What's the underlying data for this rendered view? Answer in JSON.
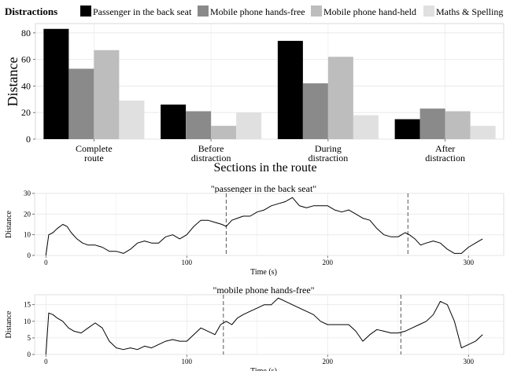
{
  "chart_data": [
    {
      "type": "bar",
      "legend_title": "Distractions",
      "legend_placement": "top",
      "categories": [
        "Complete\nroute",
        "Before\ndistraction",
        "During\ndistraction",
        "After\ndistraction"
      ],
      "series": [
        {
          "name": "Passenger in the back seat",
          "color": "#000000",
          "values": [
            83,
            26,
            74,
            15
          ]
        },
        {
          "name": "Mobile phone hands-free",
          "color": "#8a8a8a",
          "values": [
            53,
            21,
            42,
            23
          ]
        },
        {
          "name": "Mobile phone hand-held",
          "color": "#bdbdbd",
          "values": [
            67,
            10,
            62,
            21
          ]
        },
        {
          "name": "Maths & Spelling",
          "color": "#e0e0e0",
          "values": [
            29,
            20,
            18,
            10
          ]
        }
      ],
      "xlabel": "Sections in the route",
      "ylabel": "Distance",
      "yticks": [
        0,
        20,
        40,
        60,
        80
      ],
      "ylim": [
        0,
        87
      ],
      "grid": true
    },
    {
      "type": "line",
      "title": "\"passenger in the back seat\"",
      "xlabel": "Time (s)",
      "ylabel": "Distance",
      "xlim": [
        -8,
        325
      ],
      "ylim": [
        0,
        30
      ],
      "xticks": [
        0,
        100,
        200,
        300
      ],
      "yticks": [
        0,
        10,
        20,
        30
      ],
      "vlines": [
        128,
        257
      ],
      "grid": true,
      "x": [
        0,
        2,
        5,
        8,
        12,
        15,
        18,
        22,
        26,
        30,
        35,
        40,
        45,
        50,
        55,
        60,
        65,
        70,
        75,
        80,
        85,
        90,
        95,
        100,
        105,
        110,
        115,
        120,
        125,
        128,
        132,
        136,
        140,
        145,
        150,
        155,
        160,
        165,
        170,
        175,
        180,
        185,
        190,
        195,
        200,
        205,
        210,
        215,
        220,
        225,
        230,
        235,
        240,
        245,
        250,
        255,
        258,
        262,
        266,
        270,
        275,
        280,
        285,
        290,
        295,
        300,
        305,
        310
      ],
      "y": [
        0,
        10,
        11,
        13,
        15,
        14,
        11,
        8,
        6,
        5,
        5,
        4,
        2,
        2,
        1,
        3,
        6,
        7,
        6,
        6,
        9,
        10,
        8,
        10,
        14,
        17,
        17,
        16,
        15,
        14,
        17,
        18,
        19,
        19,
        21,
        22,
        24,
        25,
        26,
        28,
        24,
        23,
        24,
        24,
        24,
        22,
        21,
        22,
        20,
        18,
        17,
        13,
        10,
        9,
        9,
        11,
        10,
        8,
        5,
        6,
        7,
        6,
        3,
        1,
        1,
        4,
        6,
        8
      ]
    },
    {
      "type": "line",
      "title": "\"mobile phone hands-free\"",
      "xlabel": "Time (s)",
      "ylabel": "Distance",
      "xlim": [
        -8,
        325
      ],
      "ylim": [
        0,
        18
      ],
      "xticks": [
        0,
        100,
        200,
        300
      ],
      "yticks": [
        0,
        5,
        10,
        15
      ],
      "vlines": [
        126,
        252
      ],
      "grid": true,
      "x": [
        0,
        2,
        5,
        8,
        12,
        16,
        20,
        25,
        30,
        35,
        40,
        45,
        50,
        55,
        60,
        65,
        70,
        75,
        80,
        85,
        90,
        95,
        100,
        105,
        110,
        115,
        120,
        124,
        128,
        132,
        136,
        140,
        145,
        150,
        155,
        160,
        165,
        170,
        175,
        180,
        185,
        190,
        195,
        200,
        205,
        210,
        215,
        220,
        225,
        230,
        235,
        240,
        245,
        250,
        255,
        260,
        265,
        270,
        275,
        280,
        285,
        290,
        295,
        300,
        305,
        310
      ],
      "y": [
        0,
        12.5,
        12,
        11,
        10,
        8,
        7,
        6.5,
        8,
        9.5,
        8,
        4,
        2,
        1.5,
        2,
        1.5,
        2.5,
        2,
        3,
        4,
        4.5,
        4,
        4,
        6,
        8,
        7,
        6,
        9,
        10,
        9,
        11,
        12,
        13,
        14,
        15,
        15,
        17,
        16,
        15,
        14,
        13,
        12,
        10,
        9,
        9,
        9,
        9,
        7,
        4,
        6,
        7.5,
        7,
        6.5,
        6.5,
        7,
        8,
        9,
        10,
        12,
        16,
        15,
        10,
        2,
        3,
        4,
        6
      ]
    }
  ]
}
